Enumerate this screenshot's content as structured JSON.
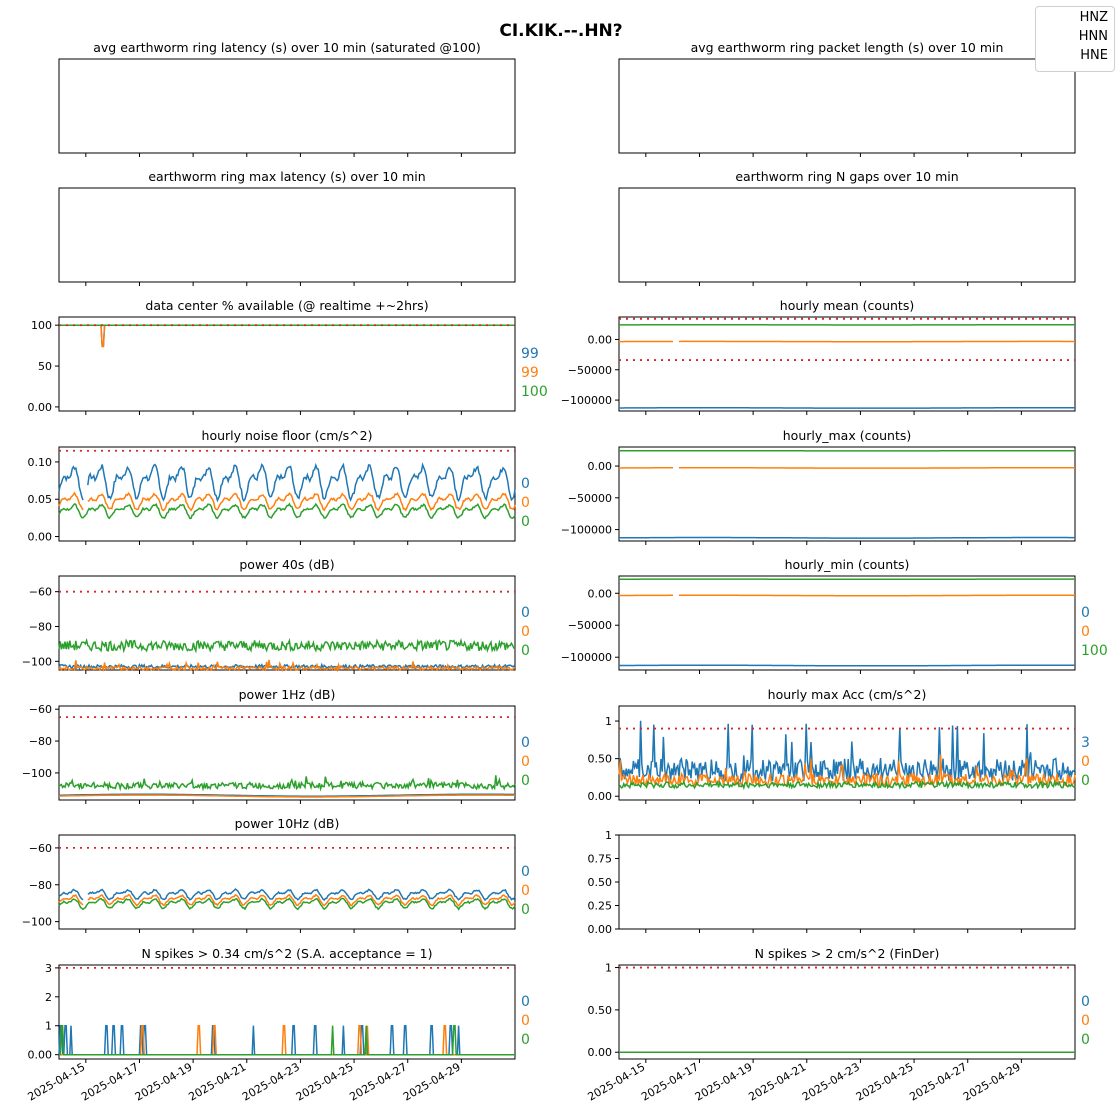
{
  "title": "CI.KIK.--.HN?",
  "legend": {
    "entries": [
      "HNZ",
      "HNN",
      "HNE"
    ]
  },
  "colors": {
    "HNZ": "#1f77b4",
    "HNN": "#ff7f0e",
    "HNE": "#2ca02c",
    "threshold": "#d62728"
  },
  "xaxis": {
    "start": "2025-04-14",
    "end": "2025-04-30",
    "ticks": [
      "2025-04-15",
      "2025-04-17",
      "2025-04-19",
      "2025-04-21",
      "2025-04-23",
      "2025-04-25",
      "2025-04-27",
      "2025-04-29"
    ]
  },
  "chart_data": [
    {
      "type": "line",
      "title": "avg earthworm ring latency (s)   over 10 min (saturated @100)",
      "empty": true,
      "series": []
    },
    {
      "type": "line",
      "title": "avg earthworm ring packet length (s)   over 10 min",
      "empty": true,
      "series": []
    },
    {
      "type": "line",
      "title": "earthworm ring max latency (s)   over 10 min",
      "empty": true,
      "series": []
    },
    {
      "type": "line",
      "title": "earthworm ring N gaps   over 10 min",
      "empty": true,
      "series": []
    },
    {
      "type": "line",
      "title": "data center % available (@ realtime +~2hrs)",
      "ylim": [
        -5,
        110
      ],
      "yticks": [
        0,
        50,
        100
      ],
      "thresholds": [
        100
      ],
      "latest": [
        "99",
        "99",
        "100"
      ],
      "series": [
        {
          "base": 100,
          "amp": 0,
          "gaps": [],
          "spikes": [
            [
              1.65,
              74
            ]
          ]
        },
        {
          "base": 100,
          "amp": 0,
          "gaps": [],
          "spikes": [
            [
              1.65,
              74
            ]
          ]
        },
        {
          "base": 100,
          "amp": 0,
          "gaps": [],
          "spikes": []
        }
      ]
    },
    {
      "type": "line",
      "title": "hourly mean (counts)",
      "ylim": [
        -118000,
        37000
      ],
      "yticks": [
        0,
        -50000,
        -100000
      ],
      "thresholds": [
        34000,
        -34000
      ],
      "latest": [],
      "series": [
        {
          "base": -113000,
          "amp": 300,
          "gaps": []
        },
        {
          "base": -3500,
          "amp": 200,
          "gaps": [
            [
              2.05,
              2.2
            ]
          ]
        },
        {
          "base": 24000,
          "amp": 150,
          "gaps": []
        }
      ]
    },
    {
      "type": "line",
      "title": "hourly noise floor (cm/s^2)",
      "ylim": [
        -0.006,
        0.12
      ],
      "yticks": [
        0.0,
        0.05,
        0.1
      ],
      "thresholds": [
        0.115
      ],
      "latest": [
        "0",
        "0",
        "0"
      ],
      "series": [
        {
          "base": 0.075,
          "amp": 0.025,
          "daily": true,
          "gaps": [
            [
              0.9,
              1.05
            ]
          ]
        },
        {
          "base": 0.048,
          "amp": 0.012,
          "daily": true,
          "gaps": [
            [
              0.9,
              1.05
            ]
          ]
        },
        {
          "base": 0.035,
          "amp": 0.01,
          "daily": true,
          "gaps": []
        }
      ]
    },
    {
      "type": "line",
      "title": "hourly_max (counts)",
      "ylim": [
        -118000,
        30000
      ],
      "yticks": [
        0,
        -50000,
        -100000
      ],
      "thresholds": [],
      "latest": [],
      "series": [
        {
          "base": -113000,
          "amp": 500,
          "gaps": []
        },
        {
          "base": -3000,
          "amp": 300,
          "gaps": [
            [
              2.05,
              2.2
            ]
          ]
        },
        {
          "base": 24000,
          "amp": 200,
          "gaps": []
        }
      ]
    },
    {
      "type": "line",
      "title": "power 40s (dB)",
      "ylim": [
        -105,
        -51
      ],
      "yticks": [
        -60,
        -80,
        -100
      ],
      "thresholds": [
        -60
      ],
      "latest": [
        "0",
        "0",
        "0"
      ],
      "series": [
        {
          "base": -103,
          "amp": 1,
          "noisy": true,
          "gaps": []
        },
        {
          "base": -104,
          "amp": 1,
          "noisy": true,
          "spiky": 4,
          "gaps": []
        },
        {
          "base": -91,
          "amp": 3,
          "noisy": true,
          "gaps": []
        }
      ]
    },
    {
      "type": "line",
      "title": "hourly_min (counts)",
      "ylim": [
        -120000,
        27000
      ],
      "yticks": [
        0,
        -50000,
        -100000
      ],
      "thresholds": [],
      "latest": [
        "0",
        "0",
        "100"
      ],
      "series": [
        {
          "base": -113000,
          "amp": 400,
          "gaps": []
        },
        {
          "base": -3500,
          "amp": 300,
          "gaps": [
            [
              2.05,
              2.2
            ]
          ]
        },
        {
          "base": 22000,
          "amp": 200,
          "gaps": []
        }
      ]
    },
    {
      "type": "line",
      "title": "power 1Hz (dB)",
      "ylim": [
        -117,
        -58
      ],
      "yticks": [
        -60,
        -80,
        -100
      ],
      "thresholds": [
        -65
      ],
      "latest": [
        "0",
        "0",
        "0"
      ],
      "series": [
        {
          "base": -114,
          "amp": 0.6,
          "gaps": []
        },
        {
          "base": -114.5,
          "amp": 0.6,
          "gaps": []
        },
        {
          "base": -108,
          "amp": 2,
          "noisy": true,
          "spiky": 6,
          "gaps": []
        }
      ]
    },
    {
      "type": "line",
      "title": "hourly max Acc (cm/s^2)",
      "ylim": [
        -0.05,
        1.2
      ],
      "yticks": [
        0.0,
        0.5,
        1.0
      ],
      "thresholds": [
        0.9
      ],
      "latest": [
        "3",
        "0",
        "0"
      ],
      "series": [
        {
          "base": 0.35,
          "amp": 0.15,
          "noisy": true,
          "spiky": 0.7,
          "gaps": []
        },
        {
          "base": 0.22,
          "amp": 0.08,
          "noisy": true,
          "spiky": 0.3,
          "gaps": []
        },
        {
          "base": 0.15,
          "amp": 0.04,
          "noisy": true,
          "gaps": []
        }
      ]
    },
    {
      "type": "line",
      "title": "power 10Hz (dB)",
      "ylim": [
        -104,
        -53
      ],
      "yticks": [
        -60,
        -80,
        -100
      ],
      "thresholds": [
        -60
      ],
      "latest": [
        "0",
        "0",
        "0"
      ],
      "series": [
        {
          "base": -85,
          "amp": 3,
          "daily": true,
          "gaps": [
            [
              0.9,
              1.05
            ]
          ]
        },
        {
          "base": -88,
          "amp": 3,
          "daily": true,
          "gaps": [
            [
              0.9,
              1.05
            ]
          ]
        },
        {
          "base": -90,
          "amp": 3,
          "daily": true,
          "gaps": []
        }
      ]
    },
    {
      "type": "line",
      "title": "",
      "ylim": [
        0,
        1
      ],
      "yticks": [
        0.0,
        0.25,
        0.5,
        0.75,
        1.0
      ],
      "thresholds": [],
      "latest": [],
      "series": []
    },
    {
      "type": "line",
      "title": "N spikes > 0.34 cm/s^2 (S.A. acceptance = 1)",
      "ylim": [
        -0.15,
        3.1
      ],
      "yticks": [
        0,
        1,
        2,
        3
      ],
      "thresholds": [
        3
      ],
      "latest": [
        "0",
        "0",
        "0"
      ],
      "series": [
        {
          "base": 0,
          "amp": 0,
          "gaps": [],
          "pulses": [
            0.05,
            0.25,
            0.45,
            1.75,
            2.05,
            2.35,
            3.05,
            3.2,
            5.75,
            7.25,
            8.75,
            9.55,
            10.6,
            11.3,
            12.4,
            12.9,
            13.9,
            14.6,
            14.9
          ]
        },
        {
          "base": 0,
          "amp": 0,
          "gaps": [],
          "pulses": [
            3.1,
            5.2,
            5.8,
            8.4,
            11.2,
            11.5,
            14.4
          ]
        },
        {
          "base": 0,
          "amp": 0,
          "gaps": [],
          "pulses": [
            0.1,
            10.2,
            11.45,
            14.75
          ]
        }
      ]
    },
    {
      "type": "line",
      "title": "N spikes > 2 cm/s^2 (FinDer)",
      "ylim": [
        -0.08,
        1.03
      ],
      "yticks": [
        0.0,
        0.5,
        1.0
      ],
      "thresholds": [
        1
      ],
      "latest": [
        "0",
        "0",
        "0"
      ],
      "series": [
        {
          "base": 0,
          "amp": 0,
          "gaps": []
        },
        {
          "base": 0,
          "amp": 0,
          "gaps": []
        },
        {
          "base": 0,
          "amp": 0,
          "gaps": []
        }
      ]
    }
  ]
}
